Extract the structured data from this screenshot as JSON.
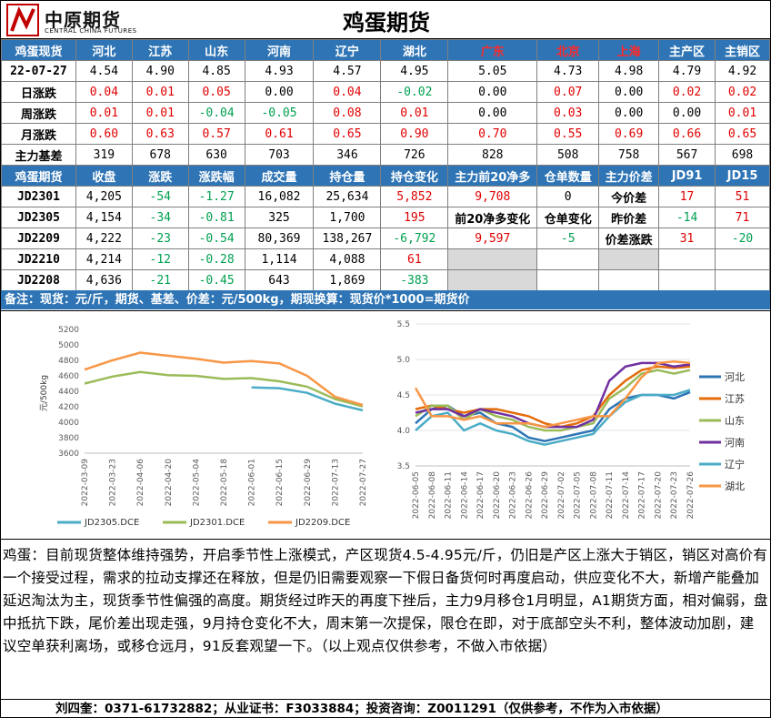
{
  "header": {
    "logo_cn": "中原期货",
    "logo_en": "CENTRAL CHINA FUTURES",
    "title": "鸡蛋期货"
  },
  "spot": {
    "header": [
      "鸡蛋现货",
      "河北",
      "江苏",
      "山东",
      "河南",
      "辽宁",
      "湖北",
      "广东",
      "北京",
      "上海",
      "主产区",
      "主销区"
    ],
    "rows": [
      {
        "label": "22-07-27",
        "values": [
          "4.54",
          "4.90",
          "4.85",
          "4.93",
          "4.57",
          "4.95",
          "5.05",
          "4.73",
          "4.98",
          "4.79",
          "4.92"
        ]
      },
      {
        "label": "日涨跌",
        "values": [
          "0.04",
          "0.01",
          "0.05",
          "0.00",
          "0.04",
          "-0.02",
          "0.00",
          "0.07",
          "0.00",
          "0.02",
          "0.02"
        ]
      },
      {
        "label": "周涨跌",
        "values": [
          "0.01",
          "0.01",
          "-0.04",
          "-0.05",
          "0.08",
          "0.01",
          "0.00",
          "0.03",
          "0.00",
          "0.00",
          "0.01"
        ]
      },
      {
        "label": "月涨跌",
        "values": [
          "0.60",
          "0.63",
          "0.57",
          "0.61",
          "0.65",
          "0.90",
          "0.70",
          "0.55",
          "0.69",
          "0.66",
          "0.65"
        ]
      },
      {
        "label": "主力基差",
        "values": [
          "319",
          "678",
          "630",
          "703",
          "346",
          "726",
          "828",
          "508",
          "758",
          "567",
          "698"
        ]
      }
    ]
  },
  "futures": {
    "header": [
      "鸡蛋期货",
      "收盘",
      "涨跌",
      "涨跌幅",
      "成交量",
      "持仓量",
      "持仓变化",
      "主力前20净多",
      "仓单数量",
      "主力价差",
      "JD91",
      "JD15"
    ],
    "rows": [
      {
        "contract": "JD2301",
        "close": "4,205",
        "chg": "-54",
        "pct": "-1.27",
        "vol": "16,082",
        "oi": "25,634",
        "oi_chg": "5,852"
      },
      {
        "contract": "JD2305",
        "close": "4,154",
        "chg": "-34",
        "pct": "-0.81",
        "vol": "325",
        "oi": "1,700",
        "oi_chg": "195"
      },
      {
        "contract": "JD2209",
        "close": "4,222",
        "chg": "-23",
        "pct": "-0.54",
        "vol": "80,369",
        "oi": "138,267",
        "oi_chg": "-6,792"
      },
      {
        "contract": "JD2210",
        "close": "4,214",
        "chg": "-12",
        "pct": "-0.28",
        "vol": "1,114",
        "oi": "4,088",
        "oi_chg": "61"
      },
      {
        "contract": "JD2208",
        "close": "4,636",
        "chg": "-21",
        "pct": "-0.45",
        "vol": "643",
        "oi": "1,869",
        "oi_chg": "-383"
      }
    ],
    "net_long_top20": "9,708",
    "warehouse_receipts": "0",
    "net_long_chg_label": "前20净多变化",
    "net_long_chg": "9,597",
    "receipt_chg_label": "仓单变化",
    "receipt_chg": "-5",
    "spread_today_label": "今价差",
    "spread_today_91": "17",
    "spread_today_15": "51",
    "spread_yest_label": "昨价差",
    "spread_yest_91": "-14",
    "spread_yest_15": "71",
    "spread_chg_label": "价差涨跌",
    "spread_chg_91": "31",
    "spread_chg_15": "-20"
  },
  "note": "备注：现货：元/斤，期货、基差、价差：元/500kg，期现换算：现货价*1000=期货价",
  "colors": {
    "header_bg": "#2f75b5",
    "up": "#e00000",
    "down": "#00a050"
  },
  "chart_data": [
    {
      "type": "line",
      "ylabel": "元/500kg",
      "ylim": [
        3600,
        5200
      ],
      "yticks": [
        3600,
        3800,
        4000,
        4200,
        4400,
        4600,
        4800,
        5000,
        5200
      ],
      "x": [
        "2022-03-09",
        "2022-03-23",
        "2022-04-06",
        "2022-04-20",
        "2022-05-04",
        "2022-05-18",
        "2022-06-01",
        "2022-06-15",
        "2022-06-29",
        "2022-07-13",
        "2022-07-27"
      ],
      "legend_position": "bottom",
      "series": [
        {
          "name": "JD2305.DCE",
          "color": "#4bacc6",
          "values": [
            null,
            null,
            null,
            null,
            null,
            null,
            4450,
            4440,
            4380,
            4240,
            4154
          ]
        },
        {
          "name": "JD2301.DCE",
          "color": "#9bbb59",
          "values": [
            4500,
            4590,
            4650,
            4610,
            4600,
            4560,
            4570,
            4530,
            4460,
            4300,
            4205
          ]
        },
        {
          "name": "JD2209.DCE",
          "color": "#f79646",
          "values": [
            4680,
            4800,
            4900,
            4860,
            4820,
            4770,
            4790,
            4760,
            4600,
            4330,
            4222
          ]
        }
      ]
    },
    {
      "type": "line",
      "ylim": [
        3.5,
        5.5
      ],
      "yticks": [
        3.5,
        4.0,
        4.5,
        5.0,
        5.5
      ],
      "x": [
        "2022-06-05",
        "2022-06-08",
        "2022-06-11",
        "2022-06-14",
        "2022-06-17",
        "2022-06-20",
        "2022-06-23",
        "2022-06-26",
        "2022-06-29",
        "2022-07-02",
        "2022-07-05",
        "2022-07-08",
        "2022-07-11",
        "2022-07-14",
        "2022-07-17",
        "2022-07-20",
        "2022-07-23",
        "2022-07-26"
      ],
      "legend_position": "right",
      "series": [
        {
          "name": "河北",
          "color": "#2e75b6",
          "values": [
            4.1,
            4.3,
            4.35,
            4.2,
            4.25,
            4.1,
            4.05,
            3.9,
            3.85,
            3.9,
            3.95,
            4.0,
            4.3,
            4.45,
            4.5,
            4.5,
            4.45,
            4.54
          ]
        },
        {
          "name": "江苏",
          "color": "#e46c0a",
          "values": [
            4.3,
            4.35,
            4.3,
            4.25,
            4.3,
            4.3,
            4.25,
            4.2,
            4.1,
            4.05,
            4.1,
            4.2,
            4.5,
            4.7,
            4.85,
            4.9,
            4.88,
            4.9
          ]
        },
        {
          "name": "山东",
          "color": "#9bbb59",
          "values": [
            4.2,
            4.35,
            4.35,
            4.15,
            4.3,
            4.2,
            4.15,
            4.05,
            4.0,
            4.0,
            4.05,
            4.1,
            4.45,
            4.6,
            4.8,
            4.85,
            4.8,
            4.85
          ]
        },
        {
          "name": "河南",
          "color": "#7030a0",
          "values": [
            4.25,
            4.3,
            4.3,
            4.2,
            4.3,
            4.25,
            4.2,
            4.1,
            4.05,
            4.05,
            4.05,
            4.15,
            4.7,
            4.9,
            4.95,
            4.95,
            4.9,
            4.93
          ]
        },
        {
          "name": "辽宁",
          "color": "#4bacc6",
          "values": [
            4.0,
            4.2,
            4.25,
            4.0,
            4.1,
            4.0,
            3.95,
            3.85,
            3.8,
            3.85,
            3.9,
            3.95,
            4.2,
            4.4,
            4.5,
            4.5,
            4.5,
            4.57
          ]
        },
        {
          "name": "湖北",
          "color": "#f79646",
          "values": [
            4.6,
            4.2,
            4.2,
            4.15,
            4.2,
            4.1,
            4.1,
            4.1,
            4.05,
            4.1,
            4.15,
            4.2,
            4.2,
            4.45,
            4.75,
            4.95,
            4.97,
            4.95
          ]
        }
      ]
    }
  ],
  "commentary": "鸡蛋：目前现货整体维持强势，开启季节性上涨模式，产区现货4.5-4.95元/斤，仍旧是产区上涨大于销区，销区对高价有一个接受过程，需求的拉动支撑还在释放，但是仍旧需要观察一下假日备货何时再度启动，供应变化不大，新增产能叠加延迟淘汰为主，现货季节性偏强的高度。期货经过昨天的再度下挫后，主力9月移仓1月明显，A1期货方面，相对偏弱，盘中抵抗下跌，尾价差出现走强，9月持仓变化不大，周末第一次提保，限仓在即，对于底部空头不利，整体波动加剧，建议空单获利离场，或移仓远月，91反套观望一下。（以上观点仅供参考，不做入市依据）",
  "footer": "刘四奎：0371-61732882；从业证书：F3033884；投资咨询：Z0011291（仅供参考，不作为入市依据）"
}
